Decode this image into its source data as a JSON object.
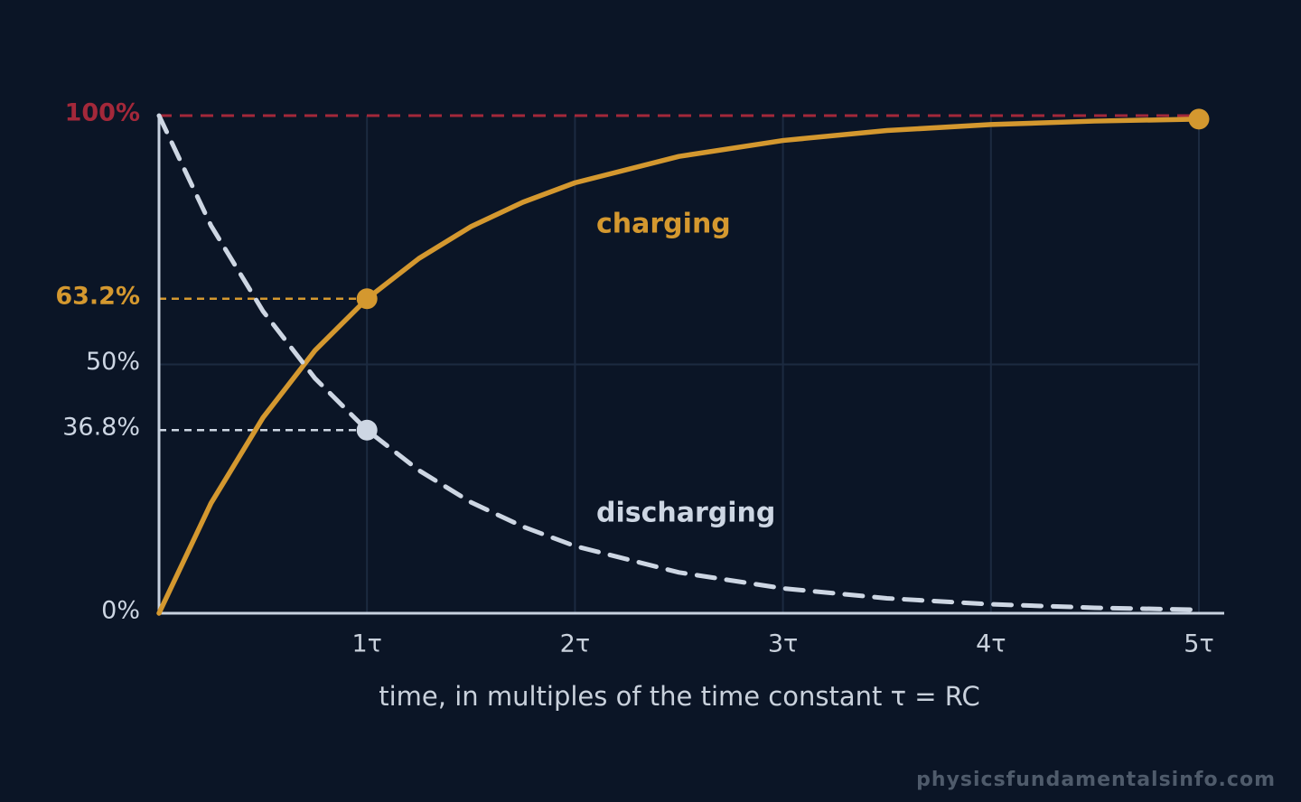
{
  "chart_data": {
    "type": "line",
    "x_label": "time, in multiples of the time constant τ = RC",
    "source": "physicsfundamentalsinfo.com",
    "x": [
      0,
      0.25,
      0.5,
      0.75,
      1,
      1.25,
      1.5,
      1.75,
      2,
      2.5,
      3,
      3.5,
      4,
      4.5,
      5
    ],
    "series": [
      {
        "name": "charging",
        "color": "#d4982f",
        "dashed": false,
        "markers_at": [
          1,
          5
        ],
        "values": [
          0,
          22.1,
          39.3,
          52.8,
          63.2,
          71.3,
          77.7,
          82.6,
          86.5,
          91.8,
          95.0,
          97.0,
          98.2,
          98.9,
          99.3
        ]
      },
      {
        "name": "discharging",
        "color": "#cdd6e3",
        "dashed": true,
        "markers_at": [
          1
        ],
        "values": [
          100,
          77.9,
          60.7,
          47.2,
          36.8,
          28.7,
          22.3,
          17.4,
          13.5,
          8.2,
          5.0,
          3.0,
          1.8,
          1.1,
          0.7
        ]
      }
    ],
    "xlim": [
      0,
      5
    ],
    "xticks": [
      {
        "value": 1,
        "label": "1τ"
      },
      {
        "value": 2,
        "label": "2τ"
      },
      {
        "value": 3,
        "label": "3τ"
      },
      {
        "value": 4,
        "label": "4τ"
      },
      {
        "value": 5,
        "label": "5τ"
      }
    ],
    "ylim": [
      0,
      100
    ],
    "yticks": [
      {
        "value": 0,
        "label": "0%",
        "color": "#cdd6e3"
      },
      {
        "value": 36.8,
        "label": "36.8%",
        "color": "#cdd6e3",
        "guide_to": 1
      },
      {
        "value": 50,
        "label": "50%",
        "color": "#cdd6e3"
      },
      {
        "value": 63.2,
        "label": "63.2%",
        "color": "#d4982f",
        "guide_to": 1
      },
      {
        "value": 100,
        "label": "100%",
        "color": "#a3283a",
        "guide_to": 5
      }
    ],
    "grid": true
  }
}
